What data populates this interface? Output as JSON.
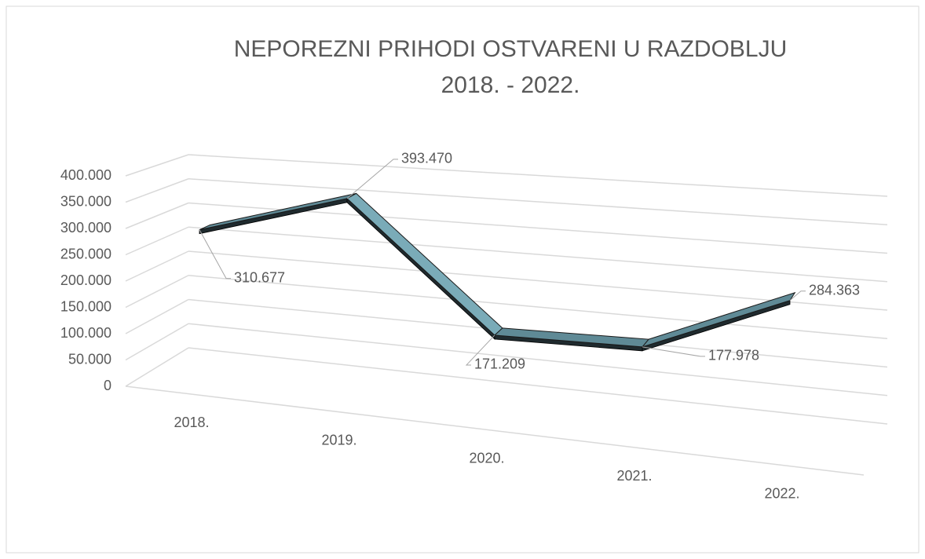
{
  "chart_data": {
    "type": "line3d",
    "title": "NEPOREZNI PRIHODI OSTVARENI U RAZDOBLJU 2018. - 2022.",
    "categories": [
      "2018.",
      "2019.",
      "2020.",
      "2021.",
      "2022."
    ],
    "values": [
      310677,
      393470,
      171209,
      177978,
      284363
    ],
    "value_labels": [
      "310.677",
      "393.470",
      "171.209",
      "177.978",
      "284.363"
    ],
    "color": "#7aabb8",
    "ylim": [
      0,
      400000
    ],
    "yticks": [
      0,
      {
        "value": 50000,
        "label": "50.000"
      },
      {
        "value": 100000,
        "label": "100.000"
      },
      {
        "value": 150000,
        "label": "150.000"
      },
      {
        "value": 200000,
        "label": "200.000"
      },
      {
        "value": 250000,
        "label": "250.000"
      },
      {
        "value": 300000,
        "label": "300.000"
      },
      {
        "value": 350000,
        "label": "350.000"
      },
      {
        "value": 400000,
        "label": "400.000"
      }
    ],
    "grid": true
  }
}
